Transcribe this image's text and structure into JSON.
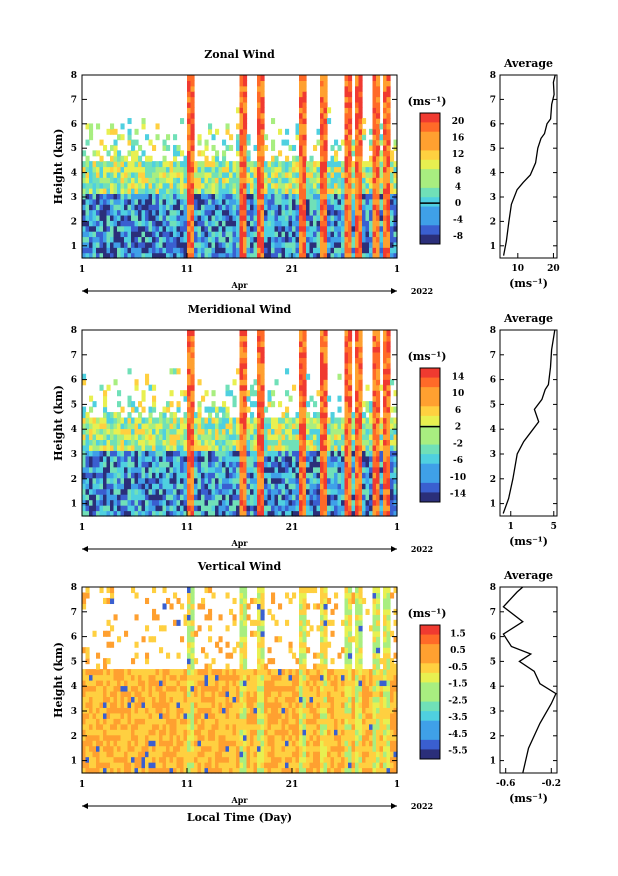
{
  "colors": {
    "scale": [
      "#2b2f7a",
      "#3a5fd0",
      "#3fa0e8",
      "#4fd0e0",
      "#70e0b8",
      "#a8ee80",
      "#e8f050",
      "#ffd040",
      "#ffa030",
      "#ff6a28",
      "#f03a30"
    ]
  },
  "chart_data": [
    {
      "type": "heatmap",
      "title": "Zonal Wind",
      "ylabel": "Height (km)",
      "xlabel": "",
      "ylim": [
        0.5,
        8
      ],
      "yticks": [
        "1",
        "2",
        "3",
        "4",
        "5",
        "6",
        "7",
        "8"
      ],
      "xticks": [
        "1",
        "11",
        "21",
        "1"
      ],
      "month": "Apr",
      "year": "2022",
      "unit": "(ms⁻¹)",
      "cbar_ticks": [
        "20",
        "16",
        "12",
        "8",
        "4",
        "0",
        "-4",
        "-8"
      ],
      "profile": {
        "title": "Average",
        "xticks": [
          "10",
          "20"
        ],
        "xlabel": "(ms⁻¹)",
        "xlim": [
          5,
          21
        ],
        "points": [
          [
            6,
            0.6
          ],
          [
            6.8,
            1.2
          ],
          [
            7.5,
            2
          ],
          [
            8.2,
            2.7
          ],
          [
            9.8,
            3.3
          ],
          [
            11.5,
            3.6
          ],
          [
            13.5,
            3.9
          ],
          [
            15,
            4.4
          ],
          [
            15.6,
            5
          ],
          [
            16.5,
            5.4
          ],
          [
            17.5,
            5.6
          ],
          [
            18.2,
            6
          ],
          [
            19.2,
            6.2
          ],
          [
            19.5,
            6.8
          ],
          [
            20.2,
            7.2
          ],
          [
            20,
            7.7
          ],
          [
            20.5,
            8
          ]
        ]
      }
    },
    {
      "type": "heatmap",
      "title": "Meridional Wind",
      "ylabel": "Height (km)",
      "xlabel": "",
      "ylim": [
        0.5,
        8
      ],
      "yticks": [
        "1",
        "2",
        "3",
        "4",
        "5",
        "6",
        "7",
        "8"
      ],
      "xticks": [
        "1",
        "11",
        "21",
        "1"
      ],
      "month": "Apr",
      "year": "2022",
      "unit": "(ms⁻¹)",
      "cbar_ticks": [
        "14",
        "10",
        "6",
        "2",
        "-2",
        "-6",
        "-10",
        "-14"
      ],
      "profile": {
        "title": "Average",
        "xticks": [
          "1",
          "5"
        ],
        "xlabel": "(ms⁻¹)",
        "xlim": [
          0,
          5.3
        ],
        "points": [
          [
            0.3,
            0.6
          ],
          [
            0.8,
            1.2
          ],
          [
            1.2,
            2
          ],
          [
            1.6,
            3
          ],
          [
            2.2,
            3.5
          ],
          [
            2.9,
            3.9
          ],
          [
            3.6,
            4.3
          ],
          [
            3.2,
            4.8
          ],
          [
            3.9,
            5.2
          ],
          [
            4.2,
            5.6
          ],
          [
            4.5,
            5.8
          ],
          [
            4.7,
            6.5
          ],
          [
            4.8,
            7.2
          ],
          [
            5.1,
            8
          ]
        ]
      }
    },
    {
      "type": "heatmap",
      "title": "Vertical Wind",
      "ylabel": "Height (km)",
      "xlabel": "Local Time (Day)",
      "ylim": [
        0.5,
        8
      ],
      "yticks": [
        "1",
        "2",
        "3",
        "4",
        "5",
        "6",
        "7",
        "8"
      ],
      "xticks": [
        "1",
        "11",
        "21",
        "1"
      ],
      "month": "Apr",
      "year": "2022",
      "unit": "(ms⁻¹)",
      "cbar_ticks": [
        "1.5",
        "0.5",
        "-0.5",
        "-1.5",
        "-2.5",
        "-3.5",
        "-4.5",
        "-5.5"
      ],
      "profile": {
        "title": "Average",
        "xticks": [
          "-0.6",
          "-0.2"
        ],
        "xlabel": "(ms⁻¹)",
        "xlim": [
          -0.65,
          -0.15
        ],
        "points": [
          [
            -0.45,
            0.5
          ],
          [
            -0.4,
            1.5
          ],
          [
            -0.3,
            2.5
          ],
          [
            -0.2,
            3.3
          ],
          [
            -0.16,
            3.7
          ],
          [
            -0.3,
            4.1
          ],
          [
            -0.35,
            4.6
          ],
          [
            -0.48,
            5
          ],
          [
            -0.38,
            5.3
          ],
          [
            -0.55,
            5.6
          ],
          [
            -0.62,
            6.1
          ],
          [
            -0.45,
            6.6
          ],
          [
            -0.62,
            7.2
          ],
          [
            -0.5,
            7.8
          ],
          [
            -0.45,
            8
          ]
        ]
      }
    }
  ]
}
